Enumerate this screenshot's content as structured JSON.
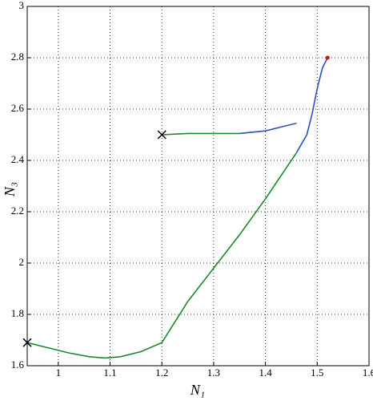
{
  "chart_data": {
    "type": "line",
    "xlabel": "N₁",
    "ylabel": "N₃",
    "xlim": [
      0.94,
      1.6
    ],
    "ylim": [
      1.6,
      3
    ],
    "xticks": [
      1,
      1.1,
      1.2,
      1.3,
      1.4,
      1.5,
      1.6
    ],
    "yticks": [
      1.6,
      1.8,
      2,
      2.2,
      2.4,
      2.6,
      2.8,
      3
    ],
    "grid": true,
    "series": [
      {
        "color": "#1a8a2a",
        "x": [
          0.94,
          0.98,
          1.02,
          1.06,
          1.09,
          1.12,
          1.16,
          1.2,
          1.25,
          1.3,
          1.35,
          1.4,
          1.44,
          1.46
        ],
        "values": [
          1.69,
          1.67,
          1.65,
          1.635,
          1.63,
          1.635,
          1.655,
          1.69,
          1.85,
          1.98,
          2.11,
          2.25,
          2.37,
          2.43
        ]
      },
      {
        "color": "#2b4fbf",
        "x": [
          1.46,
          1.48,
          1.49,
          1.5,
          1.51,
          1.52
        ],
        "values": [
          2.43,
          2.5,
          2.58,
          2.68,
          2.76,
          2.8
        ]
      },
      {
        "color": "#1a8a2a",
        "x": [
          1.2,
          1.25,
          1.3,
          1.35
        ],
        "values": [
          2.5,
          2.505,
          2.505,
          2.505
        ]
      },
      {
        "color": "#2b4fbf",
        "x": [
          1.35,
          1.4,
          1.43,
          1.46
        ],
        "values": [
          2.505,
          2.515,
          2.53,
          2.545
        ]
      }
    ],
    "markers": [
      {
        "shape": "x",
        "color": "#000000",
        "x": [
          0.94,
          1.2
        ],
        "values": [
          1.69,
          2.5
        ]
      },
      {
        "shape": "dot",
        "color": "#d01010",
        "x": [
          1.52
        ],
        "values": [
          2.8
        ]
      }
    ]
  }
}
